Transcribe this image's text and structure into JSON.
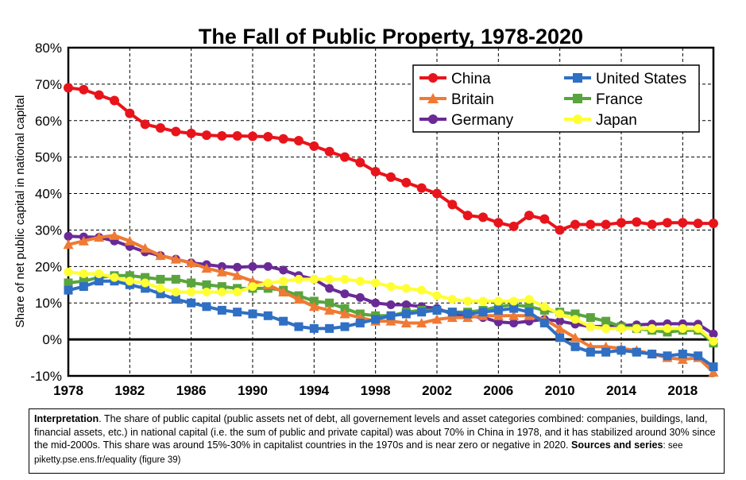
{
  "chart_data": {
    "type": "line",
    "title": "The Fall of Public Property, 1978-2020",
    "xlabel": "",
    "ylabel": "Share of net public capital in national capital",
    "xlim": [
      1978,
      2020
    ],
    "ylim": [
      -10,
      80
    ],
    "x_ticks": [
      1978,
      1982,
      1986,
      1990,
      1994,
      1998,
      2002,
      2006,
      2010,
      2014,
      2018
    ],
    "y_ticks": [
      -10,
      0,
      10,
      20,
      30,
      40,
      50,
      60,
      70,
      80
    ],
    "y_tick_labels": [
      "-10%",
      "0%",
      "10%",
      "20%",
      "30%",
      "40%",
      "50%",
      "60%",
      "70%",
      "80%"
    ],
    "grid": true,
    "legend_position": "top-right",
    "x_start": 1978,
    "series": [
      {
        "name": "China",
        "color": "#e8141b",
        "marker": "circle",
        "values": [
          69,
          68.5,
          67,
          65.5,
          62,
          59,
          58,
          57,
          56.5,
          56,
          55.8,
          55.8,
          55.7,
          55.6,
          55,
          54.5,
          53,
          51.5,
          50,
          48.5,
          46,
          44.5,
          43,
          41.5,
          40,
          37,
          34,
          33.5,
          32,
          31,
          34,
          33,
          30,
          31.5,
          31.5,
          31.5,
          32,
          32.2,
          31.5,
          32,
          32,
          31.8,
          31.8
        ]
      },
      {
        "name": "United States",
        "color": "#2f6fc4",
        "marker": "square",
        "values": [
          13.5,
          14.5,
          16,
          16,
          15,
          14,
          12.5,
          11,
          10,
          9,
          8,
          7.5,
          7,
          6.5,
          5,
          3.5,
          3,
          3,
          3.5,
          4.5,
          5.5,
          6.5,
          7,
          7.5,
          8,
          7.5,
          7,
          7.5,
          8,
          8.5,
          7.5,
          4.5,
          0.5,
          -2,
          -3.5,
          -3.5,
          -3,
          -3.5,
          -4,
          -4.5,
          -4,
          -4.5,
          -7.5
        ]
      },
      {
        "name": "Britain",
        "color": "#ef7a33",
        "marker": "triangle",
        "values": [
          26,
          27,
          28,
          28.5,
          27,
          25,
          23,
          22,
          21,
          19.5,
          18.5,
          17.5,
          16,
          15,
          13,
          11,
          9,
          8,
          7,
          6,
          5,
          5,
          4.5,
          4.5,
          5.5,
          6,
          6,
          6.5,
          6.5,
          6.5,
          6.5,
          5.5,
          3,
          0.5,
          -2,
          -2,
          -2.5,
          -3,
          -4,
          -5,
          -5.5,
          -5,
          -9
        ]
      },
      {
        "name": "France",
        "color": "#5aa43e",
        "marker": "square",
        "values": [
          15.5,
          16,
          17,
          17.5,
          17.5,
          17,
          16.5,
          16.5,
          15.5,
          15,
          14.5,
          14,
          14,
          14,
          13.5,
          12,
          10.5,
          10,
          8.5,
          7,
          6.5,
          6.5,
          7.5,
          8,
          8,
          7.5,
          7.5,
          8,
          9,
          9.5,
          9,
          8,
          7.5,
          7,
          6,
          5,
          3.5,
          3,
          2.5,
          2,
          2.5,
          2.5,
          -1
        ]
      },
      {
        "name": "Germany",
        "color": "#6a2a96",
        "marker": "circle",
        "values": [
          28.3,
          28.1,
          28,
          27,
          25.5,
          24,
          23,
          22,
          21,
          20.5,
          20,
          19.8,
          20,
          20,
          19,
          17.5,
          16.5,
          14,
          12.5,
          11.5,
          10,
          9.5,
          9.5,
          9,
          8.5,
          7,
          6.5,
          6,
          4.8,
          4.5,
          5,
          5.5,
          5,
          4.2,
          3.5,
          3.6,
          3.8,
          4,
          4.2,
          4.3,
          4.3,
          4.2,
          1.5
        ]
      },
      {
        "name": "Japan",
        "color": "#ffff33",
        "marker": "circle",
        "values": [
          18.5,
          18,
          18,
          17,
          16,
          15.5,
          14,
          13,
          13,
          13,
          13,
          13,
          14.5,
          15.5,
          16,
          16.5,
          16.5,
          16.5,
          16.5,
          16,
          15.5,
          14.5,
          14,
          13.5,
          12,
          11,
          10.5,
          10.5,
          10.5,
          10.5,
          11,
          9,
          7,
          5.5,
          3.5,
          3,
          3,
          3,
          3,
          3,
          3,
          3,
          -0.5
        ]
      }
    ]
  },
  "note": {
    "interp_label": "Interpretation",
    "interp_text": ". The share of public capital (public assets net of debt, all governement levels and asset categories combined: companies, buildings, land, financial assets, etc.) in national capital (i.e. the sum of public and private capital) was about 70% in China in 1978, and it has stabilized around 30% since the mid-2000s. This share was around 15%-30% in capitalist countries in the 1970s and is near zero or negative in 2020.",
    "sources_label": "Sources and series",
    "sources_text": ": see piketty.pse.ens.fr/equality (figure 39)"
  }
}
